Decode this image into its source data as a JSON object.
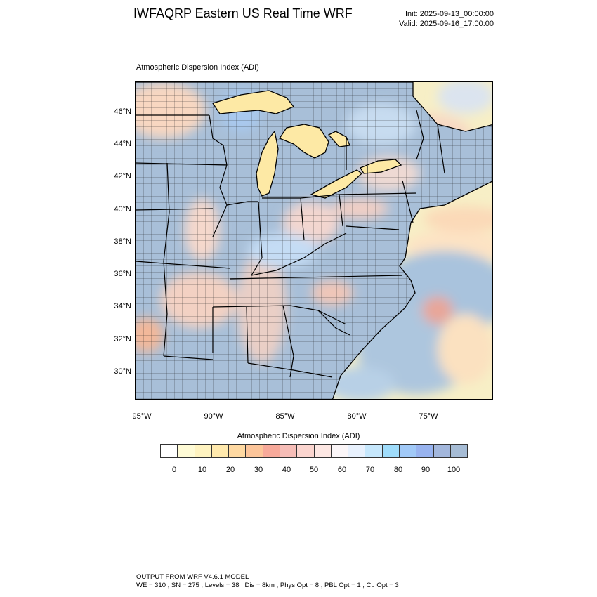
{
  "header": {
    "title": "IWFAQRP Eastern US Real Time WRF",
    "init": "Init: 2025-09-13_00:00:00",
    "valid": "Valid: 2025-09-16_17:00:00"
  },
  "plot": {
    "title": "Atmospheric Dispersion Index   (ADI)"
  },
  "axes": {
    "lat_labels": [
      "46°N",
      "44°N",
      "42°N",
      "40°N",
      "38°N",
      "36°N",
      "34°N",
      "32°N",
      "30°N"
    ],
    "lon_labels": [
      "95°W",
      "90°W",
      "85°W",
      "80°W",
      "75°W"
    ]
  },
  "colorbar": {
    "title": "Atmospheric Dispersion Index  (ADI)",
    "labels": [
      "0",
      "10",
      "20",
      "30",
      "40",
      "50",
      "60",
      "70",
      "80",
      "90",
      "100"
    ],
    "colors": [
      "#ffffff",
      "#fffbd6",
      "#fff3c0",
      "#ffe9ad",
      "#ffd9a2",
      "#fcc59a",
      "#f7a99a",
      "#f6bdb7",
      "#fbd5cf",
      "#fde7e3",
      "#fbf6f8",
      "#e8f1fd",
      "#c6e7fc",
      "#9fdcfb",
      "#a1c9f7",
      "#98b3ef",
      "#a3b7dc",
      "#a6bcd5"
    ]
  },
  "footer": {
    "line1": "OUTPUT FROM WRF V4.6.1 MODEL",
    "line2": "WE = 310 ; SN = 275 ; Levels = 38 ; Dis = 8km ; Phys Opt = 8 ; PBL Opt = 1 ; Cu Opt = 3"
  }
}
